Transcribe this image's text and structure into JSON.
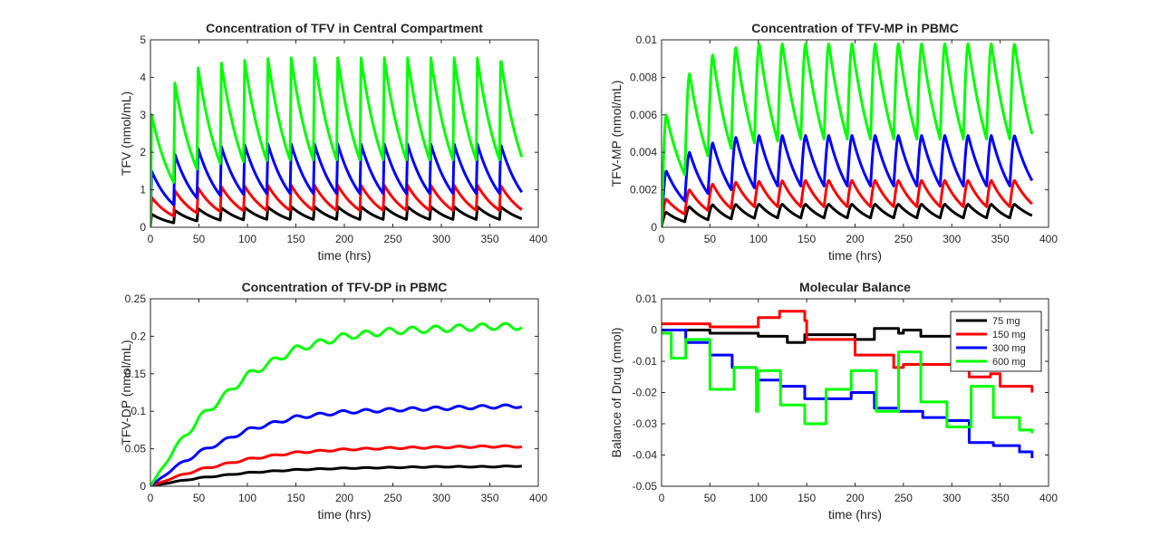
{
  "chart_data": [
    {
      "id": "tfv_central",
      "type": "line",
      "title": "Concentration of TFV in Central Compartment",
      "xlabel": "time (hrs)",
      "ylabel": "TFV (nmol/mL)",
      "xlim": [
        0,
        400
      ],
      "ylim": [
        0,
        5
      ],
      "xticks": [
        "0",
        "50",
        "100",
        "150",
        "200",
        "250",
        "300",
        "350",
        "400"
      ],
      "yticks": [
        "0",
        "1",
        "2",
        "3",
        "4",
        "5"
      ],
      "model": "pulsatile",
      "dose_interval_hrs": 24,
      "x_end": 383,
      "series": [
        {
          "color": "#000000",
          "peaks": [
            0.35,
            0.45,
            0.5,
            0.52,
            0.53,
            0.54,
            0.55,
            0.55,
            0.55,
            0.55,
            0.55,
            0.55,
            0.55,
            0.55,
            0.55,
            0.55
          ],
          "troughs": [
            0.12,
            0.17,
            0.19,
            0.2,
            0.21,
            0.21,
            0.21,
            0.21,
            0.21,
            0.21,
            0.21,
            0.21,
            0.21,
            0.21,
            0.21,
            0.22
          ]
        },
        {
          "color": "#ff0000",
          "peaks": [
            0.8,
            0.98,
            1.05,
            1.08,
            1.1,
            1.12,
            1.12,
            1.12,
            1.12,
            1.12,
            1.12,
            1.12,
            1.12,
            1.12,
            1.12,
            1.12
          ],
          "troughs": [
            0.3,
            0.38,
            0.42,
            0.44,
            0.45,
            0.45,
            0.45,
            0.45,
            0.45,
            0.45,
            0.45,
            0.45,
            0.45,
            0.45,
            0.45,
            0.45
          ]
        },
        {
          "color": "#0000ff",
          "peaks": [
            1.5,
            1.95,
            2.1,
            2.15,
            2.2,
            2.22,
            2.22,
            2.22,
            2.22,
            2.22,
            2.22,
            2.22,
            2.22,
            2.22,
            2.22,
            2.22
          ],
          "troughs": [
            0.6,
            0.78,
            0.85,
            0.88,
            0.9,
            0.9,
            0.9,
            0.9,
            0.9,
            0.9,
            0.9,
            0.9,
            0.9,
            0.9,
            0.9,
            0.9
          ]
        },
        {
          "color": "#00ff00",
          "peaks": [
            3.0,
            3.85,
            4.25,
            4.38,
            4.45,
            4.5,
            4.52,
            4.52,
            4.52,
            4.52,
            4.52,
            4.52,
            4.52,
            4.52,
            4.52,
            4.52
          ],
          "troughs": [
            1.2,
            1.55,
            1.7,
            1.75,
            1.78,
            1.8,
            1.8,
            1.8,
            1.8,
            1.8,
            1.8,
            1.8,
            1.8,
            1.8,
            1.8,
            1.8
          ]
        }
      ]
    },
    {
      "id": "tfv_mp",
      "type": "line",
      "title": "Concentration of TFV-MP in PBMC",
      "xlabel": "time (hrs)",
      "ylabel": "TFV-MP (nmol/mL)",
      "xlim": [
        0,
        400
      ],
      "ylim": [
        0,
        0.01
      ],
      "xticks": [
        "0",
        "50",
        "100",
        "150",
        "200",
        "250",
        "300",
        "350",
        "400"
      ],
      "yticks": [
        "0",
        "0.002",
        "0.004",
        "0.006",
        "0.008",
        "0.01"
      ],
      "model": "smooth_pulsatile",
      "dose_interval_hrs": 24,
      "x_end": 383,
      "series": [
        {
          "color": "#000000",
          "peaks": [
            0.0008,
            0.0011,
            0.0012,
            0.00122,
            0.00123,
            0.00123,
            0.00123,
            0.00123,
            0.00123,
            0.00123,
            0.00123,
            0.00123,
            0.00123,
            0.00123,
            0.00123,
            0.00123
          ],
          "troughs": [
            0.0003,
            0.0004,
            0.00045,
            0.00048,
            0.0005,
            0.0005,
            0.0005,
            0.0005,
            0.0005,
            0.0005,
            0.0005,
            0.0005,
            0.0005,
            0.0005,
            0.0005,
            0.0006
          ]
        },
        {
          "color": "#ff0000",
          "peaks": [
            0.0015,
            0.002,
            0.0023,
            0.0024,
            0.00245,
            0.00248,
            0.0025,
            0.0025,
            0.0025,
            0.0025,
            0.0025,
            0.0025,
            0.0025,
            0.0025,
            0.0025,
            0.0025
          ],
          "troughs": [
            0.0007,
            0.0009,
            0.001,
            0.0011,
            0.0011,
            0.0011,
            0.0011,
            0.0011,
            0.0011,
            0.0011,
            0.0011,
            0.0011,
            0.0011,
            0.0011,
            0.0011,
            0.0012
          ]
        },
        {
          "color": "#0000ff",
          "peaks": [
            0.003,
            0.004,
            0.0045,
            0.0048,
            0.0049,
            0.0049,
            0.0049,
            0.0049,
            0.0049,
            0.0049,
            0.0049,
            0.0049,
            0.0049,
            0.0049,
            0.0049,
            0.0049
          ],
          "troughs": [
            0.0014,
            0.0018,
            0.002,
            0.0021,
            0.0022,
            0.0022,
            0.0022,
            0.0022,
            0.0022,
            0.0022,
            0.0022,
            0.0022,
            0.0022,
            0.0022,
            0.0022,
            0.0024
          ]
        },
        {
          "color": "#00ff00",
          "peaks": [
            0.006,
            0.0082,
            0.0092,
            0.0096,
            0.0098,
            0.0098,
            0.0098,
            0.0098,
            0.0098,
            0.0098,
            0.0098,
            0.0098,
            0.0098,
            0.0098,
            0.0098,
            0.0098
          ],
          "troughs": [
            0.0028,
            0.0038,
            0.0042,
            0.0045,
            0.0046,
            0.0047,
            0.0047,
            0.0047,
            0.0047,
            0.0047,
            0.0047,
            0.0047,
            0.0047,
            0.0047,
            0.0047,
            0.0048
          ]
        }
      ]
    },
    {
      "id": "tfv_dp",
      "type": "line",
      "title": "Concentration of TFV-DP in PBMC",
      "xlabel": "time (hrs)",
      "ylabel": "TFV-DP (nmol/mL)",
      "xlim": [
        0,
        400
      ],
      "ylim": [
        0,
        0.25
      ],
      "xticks": [
        "0",
        "50",
        "100",
        "150",
        "200",
        "250",
        "300",
        "350",
        "400"
      ],
      "yticks": [
        "0",
        "0.05",
        "0.1",
        "0.15",
        "0.2",
        "0.25"
      ],
      "model": "accumulation",
      "dose_interval_hrs": 24,
      "x_end": 383,
      "series": [
        {
          "color": "#000000",
          "x": [
            0,
            25,
            50,
            100,
            150,
            200,
            250,
            300,
            350,
            383
          ],
          "y": [
            0,
            0.006,
            0.011,
            0.018,
            0.022,
            0.024,
            0.025,
            0.026,
            0.026,
            0.027
          ]
        },
        {
          "color": "#ff0000",
          "x": [
            0,
            25,
            50,
            100,
            150,
            200,
            250,
            300,
            350,
            383
          ],
          "y": [
            0,
            0.012,
            0.022,
            0.036,
            0.045,
            0.049,
            0.051,
            0.052,
            0.053,
            0.053
          ]
        },
        {
          "color": "#0000ff",
          "x": [
            0,
            25,
            50,
            100,
            150,
            200,
            250,
            300,
            350,
            383
          ],
          "y": [
            0,
            0.025,
            0.045,
            0.075,
            0.092,
            0.099,
            0.102,
            0.104,
            0.106,
            0.107
          ]
        },
        {
          "color": "#00ff00",
          "x": [
            0,
            25,
            50,
            100,
            150,
            200,
            250,
            300,
            350,
            383
          ],
          "y": [
            0,
            0.05,
            0.09,
            0.148,
            0.183,
            0.2,
            0.207,
            0.21,
            0.213,
            0.213
          ]
        }
      ]
    },
    {
      "id": "balance",
      "type": "line",
      "title": "Molecular Balance",
      "xlabel": "time (hrs)",
      "ylabel": "Balance of Drug (nmol)",
      "xlim": [
        0,
        400
      ],
      "ylim": [
        -0.05,
        0.01
      ],
      "xticks": [
        "0",
        "50",
        "100",
        "150",
        "200",
        "250",
        "300",
        "350",
        "400"
      ],
      "yticks": [
        "0.01",
        "0",
        "-0.01",
        "-0.02",
        "-0.03",
        "-0.04",
        "-0.05"
      ],
      "model": "step",
      "legend_position": "top-right",
      "x_end": 383,
      "series": [
        {
          "name": "75 mg",
          "color": "#000000",
          "x": [
            0,
            50,
            100,
            130,
            148,
            200,
            220,
            245,
            250,
            268,
            300,
            383
          ],
          "y": [
            0,
            -0.001,
            -0.002,
            -0.004,
            -0.0015,
            -0.003,
            0.0005,
            -0.001,
            0.0,
            -0.002,
            -0.0015,
            -0.001
          ]
        },
        {
          "name": "150 mg",
          "color": "#ff0000",
          "x": [
            0,
            50,
            100,
            122,
            148,
            150,
            200,
            240,
            250,
            300,
            318,
            340,
            350,
            383
          ],
          "y": [
            0.002,
            0.001,
            0.004,
            0.006,
            0.003,
            -0.003,
            -0.008,
            -0.012,
            -0.011,
            -0.012,
            -0.015,
            -0.014,
            -0.018,
            -0.02
          ]
        },
        {
          "name": "300 mg",
          "color": "#0000ff",
          "x": [
            0,
            25,
            50,
            73,
            98,
            123,
            148,
            170,
            196,
            220,
            245,
            270,
            295,
            318,
            343,
            370,
            383
          ],
          "y": [
            0,
            -0.004,
            -0.008,
            -0.012,
            -0.016,
            -0.018,
            -0.022,
            -0.022,
            -0.02,
            -0.025,
            -0.026,
            -0.028,
            -0.029,
            -0.036,
            -0.037,
            -0.039,
            -0.041
          ]
        },
        {
          "name": "600 mg",
          "color": "#00ff00",
          "x": [
            0,
            10,
            25,
            50,
            75,
            98,
            100,
            123,
            148,
            170,
            196,
            222,
            245,
            268,
            295,
            320,
            343,
            370,
            383
          ],
          "y": [
            -0.001,
            -0.009,
            -0.003,
            -0.019,
            -0.012,
            -0.026,
            -0.013,
            -0.024,
            -0.03,
            -0.019,
            -0.013,
            -0.026,
            -0.007,
            -0.023,
            -0.031,
            -0.018,
            -0.028,
            -0.032,
            -0.033
          ]
        }
      ]
    }
  ]
}
